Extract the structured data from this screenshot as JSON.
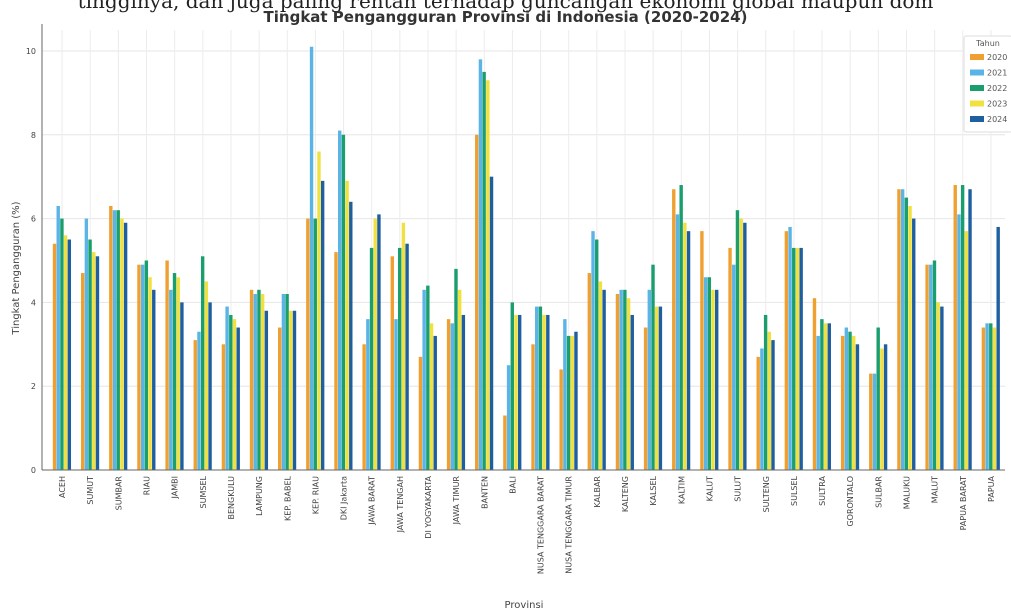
{
  "caption_fragment": "tingginya, dan juga paling rentan terhadap guncangan ekonomi global maupun dom",
  "chart_data": {
    "type": "bar",
    "title": "Tingkat Pengangguran Provinsi di Indonesia (2020-2024)",
    "xlabel": "Provinsi",
    "ylabel": "Tingkat Pengangguran (%)",
    "ylim": [
      0,
      10.5
    ],
    "yticks": [
      0,
      2,
      4,
      6,
      8,
      10
    ],
    "grid": true,
    "legend": {
      "title": "Tahun",
      "position": "top-right"
    },
    "categories": [
      "ACEH",
      "SUMUT",
      "SUMBAR",
      "RIAU",
      "JAMBI",
      "SUMSEL",
      "BENGKULU",
      "LAMPUNG",
      "KEP. BABEL",
      "KEP. RIAU",
      "DKI Jakarta",
      "JAWA BARAT",
      "JAWA TENGAH",
      "DI YOGYAKARTA",
      "JAWA TIMUR",
      "BANTEN",
      "BALI",
      "NUSA TENGGARA BARAT",
      "NUSA TENGGARA TIMUR",
      "KALBAR",
      "KALTENG",
      "KALSEL",
      "KALTIM",
      "KALUT",
      "SULUT",
      "SULTENG",
      "SULSEL",
      "SULTRA",
      "GORONTALO",
      "SULBAR",
      "MALUKU",
      "MALUT",
      "PAPUA BARAT",
      "PAPUA"
    ],
    "series": [
      {
        "name": "2020",
        "color": "#f0a030",
        "values": [
          5.4,
          4.7,
          6.3,
          4.9,
          5.0,
          3.1,
          3.0,
          4.3,
          3.4,
          6.0,
          5.2,
          3.0,
          5.1,
          2.7,
          3.6,
          8.0,
          1.3,
          3.0,
          2.4,
          4.7,
          4.2,
          3.4,
          6.7,
          5.7,
          5.3,
          2.7,
          5.7,
          4.1,
          3.2,
          2.3,
          6.7,
          4.9,
          6.8,
          3.4
        ]
      },
      {
        "name": "2021",
        "color": "#5ab4e6",
        "values": [
          6.3,
          6.0,
          6.2,
          4.9,
          4.3,
          3.3,
          3.9,
          4.2,
          4.2,
          10.1,
          8.1,
          3.6,
          3.6,
          4.3,
          3.5,
          9.8,
          2.5,
          3.9,
          3.6,
          5.7,
          4.3,
          4.3,
          6.1,
          4.6,
          4.9,
          2.9,
          5.8,
          3.2,
          3.4,
          2.3,
          6.7,
          4.9,
          6.1,
          3.5
        ]
      },
      {
        "name": "2022",
        "color": "#1a9e6e",
        "values": [
          6.0,
          5.5,
          6.2,
          5.0,
          4.7,
          5.1,
          3.7,
          4.3,
          4.2,
          6.0,
          8.0,
          5.3,
          5.3,
          4.4,
          4.8,
          9.5,
          4.0,
          3.9,
          3.2,
          5.5,
          4.3,
          4.9,
          6.8,
          4.6,
          6.2,
          3.7,
          5.3,
          3.6,
          3.3,
          3.4,
          6.5,
          5.0,
          6.8,
          3.5
        ]
      },
      {
        "name": "2023",
        "color": "#f0e040",
        "values": [
          5.6,
          5.2,
          6.0,
          4.6,
          4.6,
          4.5,
          3.6,
          4.2,
          3.8,
          7.6,
          6.9,
          6.0,
          5.9,
          3.5,
          4.3,
          9.3,
          3.7,
          3.7,
          3.2,
          4.5,
          4.1,
          3.9,
          5.9,
          4.3,
          6.0,
          3.3,
          5.3,
          3.5,
          3.2,
          2.9,
          6.3,
          4.0,
          5.7,
          3.4
        ]
      },
      {
        "name": "2024",
        "color": "#1f5fa0",
        "values": [
          5.5,
          5.1,
          5.9,
          4.3,
          4.0,
          4.0,
          3.4,
          3.8,
          3.8,
          6.9,
          6.4,
          6.1,
          5.4,
          3.2,
          3.7,
          7.0,
          3.7,
          3.7,
          3.3,
          4.3,
          3.7,
          3.9,
          5.7,
          4.3,
          5.9,
          3.1,
          5.3,
          3.5,
          3.0,
          3.0,
          6.0,
          3.9,
          6.7,
          5.8
        ]
      }
    ]
  }
}
